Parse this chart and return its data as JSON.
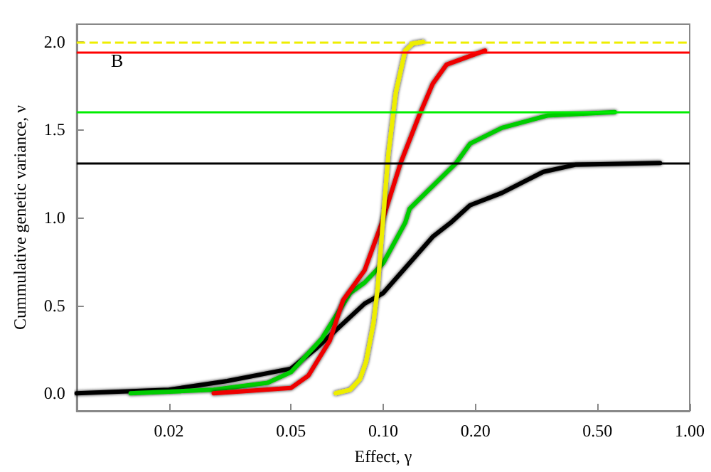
{
  "chart_data": {
    "type": "line",
    "xlabel": "Effect, γ",
    "ylabel": "Cummulative genetic variance, ν",
    "annotations": [
      "B"
    ],
    "log": "x",
    "xlim": [
      0.01,
      1.0
    ],
    "ylim": [
      -0.1,
      2.1
    ],
    "xticks": [
      {
        "value": 0.02,
        "label": "0.02"
      },
      {
        "value": 0.05,
        "label": "0.05"
      },
      {
        "value": 0.1,
        "label": "0.10"
      },
      {
        "value": 0.2,
        "label": "0.20"
      },
      {
        "value": 0.5,
        "label": "0.50"
      },
      {
        "value": 1.0,
        "label": "1.00"
      }
    ],
    "yticks": [
      {
        "value": 0,
        "label": "0.0"
      },
      {
        "value": 0.5,
        "label": "0.5"
      },
      {
        "value": 1.0,
        "label": "1.0"
      },
      {
        "value": 1.5,
        "label": "1.5"
      },
      {
        "value": 2.0,
        "label": "2.0"
      }
    ],
    "grid": false,
    "marker": "none",
    "line_style": "solid",
    "series": [
      {
        "color": "#000000",
        "x": [
          0.01,
          0.02,
          0.031,
          0.05,
          0.06,
          0.087,
          0.1,
          0.145,
          0.166,
          0.192,
          0.244,
          0.333,
          0.423,
          0.8
        ],
        "values": [
          0,
          0.02,
          0.07,
          0.14,
          0.25,
          0.51,
          0.57,
          0.89,
          0.97,
          1.07,
          1.14,
          1.26,
          1.3,
          1.31
        ]
      },
      {
        "color": "#00cc00",
        "x": [
          0.015,
          0.028,
          0.042,
          0.05,
          0.063,
          0.078,
          0.087,
          0.1,
          0.118,
          0.122,
          0.173,
          0.192,
          0.244,
          0.343,
          0.57
        ],
        "values": [
          0,
          0.02,
          0.06,
          0.12,
          0.31,
          0.57,
          0.63,
          0.74,
          0.97,
          1.05,
          1.31,
          1.42,
          1.51,
          1.58,
          1.6
        ]
      },
      {
        "color": "#ee0000",
        "x": [
          0.028,
          0.05,
          0.057,
          0.067,
          0.074,
          0.087,
          0.099,
          0.114,
          0.131,
          0.145,
          0.161,
          0.215
        ],
        "values": [
          0,
          0.03,
          0.1,
          0.3,
          0.53,
          0.7,
          0.97,
          1.31,
          1.58,
          1.76,
          1.87,
          1.95
        ]
      },
      {
        "color": "#eeee00",
        "x": [
          0.07,
          0.078,
          0.084,
          0.088,
          0.093,
          0.096,
          0.099,
          0.104,
          0.11,
          0.118,
          0.125,
          0.135
        ],
        "values": [
          0,
          0.02,
          0.08,
          0.18,
          0.4,
          0.6,
          0.9,
          1.36,
          1.71,
          1.95,
          1.99,
          2.0
        ]
      }
    ],
    "ref_lines": [
      {
        "axis": "y",
        "value": 1.31,
        "color": "#000000",
        "line_style": "solid"
      },
      {
        "axis": "y",
        "value": 1.6,
        "color": "#00ee00",
        "line_style": "solid"
      },
      {
        "axis": "y",
        "value": 1.94,
        "color": "#ff0000",
        "line_style": "solid"
      },
      {
        "axis": "y",
        "value": 2.0,
        "color": "#eeee00",
        "line_style": "dashed"
      }
    ]
  }
}
